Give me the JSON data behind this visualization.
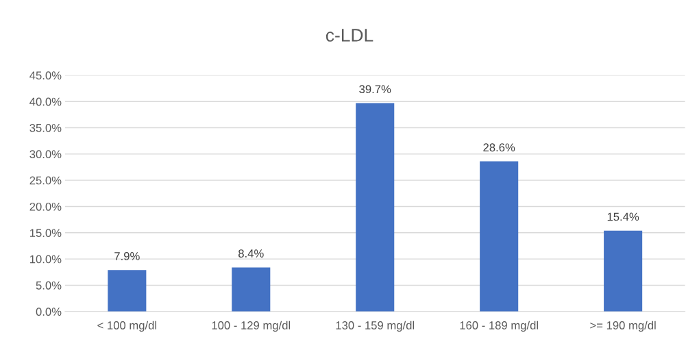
{
  "chart_data": {
    "type": "bar",
    "title": "c-LDL",
    "categories": [
      "< 100 mg/dl",
      "100 - 129 mg/dl",
      "130 - 159 mg/dl",
      "160 - 189 mg/dl",
      ">= 190 mg/dl"
    ],
    "values": [
      7.9,
      8.4,
      39.7,
      28.6,
      15.4
    ],
    "value_labels": [
      "7.9%",
      "8.4%",
      "39.7%",
      "28.6%",
      "15.4%"
    ],
    "color": "#4472c4",
    "ylim": [
      0,
      45
    ],
    "yticks": [
      {
        "value": 0,
        "label": "0.0%"
      },
      {
        "value": 5,
        "label": "5.0%"
      },
      {
        "value": 10,
        "label": "10.0%"
      },
      {
        "value": 15,
        "label": "15.0%"
      },
      {
        "value": 20,
        "label": "20.0%"
      },
      {
        "value": 25,
        "label": "25.0%"
      },
      {
        "value": 30,
        "label": "30.0%"
      },
      {
        "value": 35,
        "label": "35.0%"
      },
      {
        "value": 40,
        "label": "40.0%"
      },
      {
        "value": 45,
        "label": "45.0%"
      }
    ],
    "grid": "y"
  }
}
